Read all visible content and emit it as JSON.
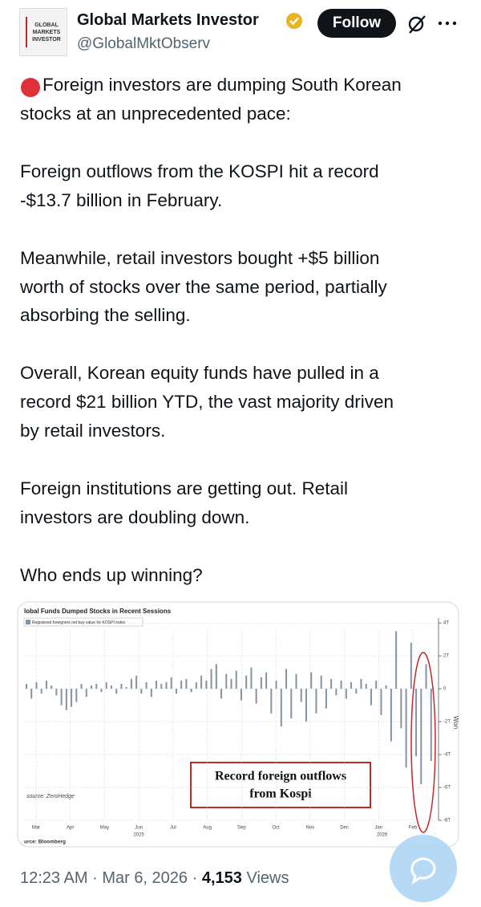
{
  "header": {
    "avatar_text": [
      "GLOBAL",
      "MARKETS",
      "INVESTOR"
    ],
    "display_name": "Global Markets Investor",
    "handle": "@GlobalMktObserv",
    "follow_button": "Follow"
  },
  "body": {
    "paragraphs": [
      [
        "Foreign investors are dumping South Korean",
        "stocks at an unprecedented pace:"
      ],
      [
        "Foreign outflows from the KOSPI hit a record",
        "-$13.7 billion in February."
      ],
      [
        "Meanwhile, retail investors bought +$5 billion",
        "worth of stocks over the same period, partially",
        "absorbing the selling."
      ],
      [
        "Overall, Korean equity funds have pulled in a",
        "record $21 billion YTD, the vast majority driven",
        "by retail investors."
      ],
      [
        "Foreign institutions are getting out. Retail",
        "investors are doubling down."
      ],
      [
        "Who ends up winning?"
      ]
    ]
  },
  "chart_data": {
    "type": "bar",
    "title": "lobal Funds Dumped Stocks in Recent Sessions",
    "series": [
      {
        "name": "Registered foreigners net buy value for KOSPI index",
        "color": "#8593a3",
        "values": [
          0.3,
          -0.6,
          0.4,
          -0.3,
          0.5,
          0.2,
          -0.4,
          -1.0,
          -1.3,
          -1.1,
          -0.8,
          0.3,
          -0.5,
          0.2,
          0.3,
          -0.2,
          0.4,
          0.2,
          -0.3,
          0.3,
          0.1,
          0.6,
          0.8,
          -0.3,
          0.4,
          -0.5,
          0.5,
          0.3,
          0.4,
          0.7,
          -0.3,
          0.5,
          0.6,
          -0.2,
          0.4,
          0.8,
          0.5,
          1.2,
          1.5,
          -0.6,
          0.9,
          0.6,
          1.1,
          -0.7,
          0.8,
          1.3,
          -0.9,
          0.7,
          1.0,
          -1.5,
          0.5,
          -2.3,
          1.2,
          -1.8,
          0.9,
          -0.8,
          -2.0,
          1.0,
          -1.5,
          0.8,
          -1.2,
          0.6,
          -0.4,
          0.5,
          -0.6,
          0.4,
          -0.3,
          0.6,
          0.3,
          -1.0,
          0.5,
          -1.6,
          0.2,
          -3.2,
          3.5,
          -2.4,
          -4.8,
          2.8,
          -4.1,
          -5.8,
          1.5,
          -4.4
        ]
      }
    ],
    "month_labels": [
      "Mar",
      "Apr",
      "May",
      "Jun",
      "Jul",
      "Aug",
      "Sep",
      "Oct",
      "Nov",
      "Dec",
      "Jan",
      "Feb"
    ],
    "year_labels": [
      "2025",
      "2026"
    ],
    "y_axis_label": "Won",
    "ylim": [
      -8,
      4.3
    ],
    "yticks": [
      {
        "value": 4,
        "label": "4T"
      },
      {
        "value": 2,
        "label": "2T"
      },
      0,
      {
        "value": -2,
        "label": "-2T"
      },
      {
        "value": -4,
        "label": "-4T"
      },
      {
        "value": -6,
        "label": "-6T"
      },
      {
        "value": -8,
        "label": "-8T"
      }
    ],
    "grid": true,
    "annotation": [
      "Record foreign outflows",
      "from Kospi"
    ],
    "source_1": "source: ZeroHedge",
    "source_2": "urce: Bloomberg"
  },
  "footer": {
    "time": "12:23 AM",
    "separator": "·",
    "date": "Mar 6, 2026",
    "views_count": "4,153",
    "views_label": "Views"
  }
}
